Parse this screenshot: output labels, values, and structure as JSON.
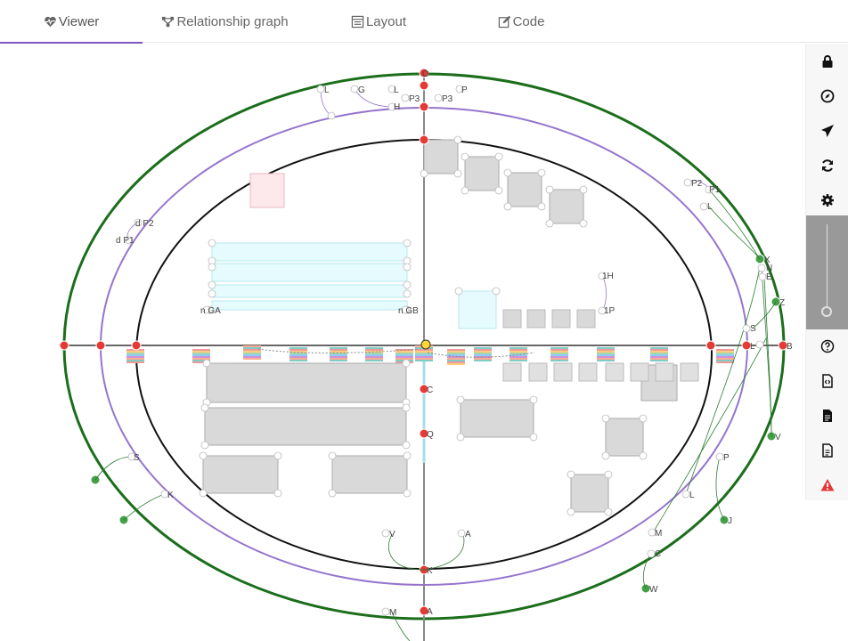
{
  "tabs": [
    {
      "label": "Viewer",
      "icon": "heart-pulse-icon",
      "active": true
    },
    {
      "label": "Relationship graph",
      "icon": "diagram-icon",
      "active": false
    },
    {
      "label": "Layout",
      "icon": "layout-icon",
      "active": false
    },
    {
      "label": "Code",
      "icon": "edit-code-icon",
      "active": false
    }
  ],
  "toolbar": {
    "buttons": [
      "lock-icon",
      "compass-icon",
      "send-icon",
      "refresh-icon",
      "gear-icon",
      "help-icon",
      "code-file-icon",
      "document-icon",
      "document-outline-icon",
      "warning-icon"
    ],
    "zoom_level": 0.08
  },
  "canvas": {
    "labels": {
      "top_o": "O",
      "l1": "L",
      "g1": "G",
      "l2": "L",
      "p": "P",
      "h": "H",
      "p3a": "P3",
      "p3b": "P3",
      "p2r": "P2",
      "p1r": "P1",
      "ll": "L",
      "dp2": "d P2",
      "dp1": "d P1",
      "ga": "n GA",
      "gb": "n GB",
      "h1": "1H",
      "p1": "1P",
      "x": "X",
      "n": "N",
      "e": "E",
      "z": "Z",
      "s_r": "S",
      "l_r": "L",
      "b_r": "B",
      "c": "C",
      "q": "Q",
      "s_l": "S",
      "k": "K",
      "v_r": "V",
      "pr": "P",
      "l_low": "L",
      "j": "J",
      "m": "M",
      "c2": "C",
      "w": "W",
      "v": "V",
      "a": "A",
      "mm": "M",
      "a2": "A",
      "k2": "K"
    }
  },
  "colors": {
    "accent": "#7e57c2",
    "outer_ring": "#1b6e1b",
    "middle_ring": "#9575cd",
    "inner_ring": "#111111",
    "node_red": "#e53935",
    "node_green": "#43a047",
    "box_grey": "#d9d9d9",
    "box_pink": "#fde8ec",
    "box_cyan": "#e6fbfd",
    "warning": "#e53935"
  }
}
